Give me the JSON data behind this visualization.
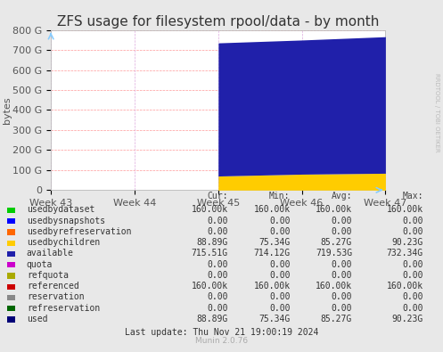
{
  "title": "ZFS usage for filesystem rpool/data - by month",
  "ylabel": "bytes",
  "background_color": "#e8e8e8",
  "plot_bg_color": "#ffffff",
  "grid_color_h": "#ff9999",
  "grid_color_v": "#ddaadd",
  "x_labels": [
    "Week 43",
    "Week 44",
    "Week 45",
    "Week 46",
    "Week 47"
  ],
  "x_positions": [
    0,
    1,
    2,
    3,
    4
  ],
  "xlim": [
    0,
    4
  ],
  "ylim": [
    0,
    858993459200
  ],
  "yticks": [
    0,
    107374182400,
    214748364800,
    322122547200,
    429496729600,
    536870912000,
    644245094400,
    751619276800,
    858993459200
  ],
  "ytick_labels": [
    "0",
    "100 G",
    "200 G",
    "300 G",
    "400 G",
    "500 G",
    "600 G",
    "700 G",
    "800 G"
  ],
  "colors": {
    "usedbydataset": "#00cc00",
    "usedbysnapshots": "#0000ff",
    "usedbyrefreservation": "#ff6600",
    "usedbychildren": "#ffcc00",
    "available": "#2020aa",
    "quota": "#cc00cc",
    "refquota": "#aaaa00",
    "referenced": "#cc0000",
    "reservation": "#888888",
    "refreservation": "#006600",
    "used": "#000077"
  },
  "x_data": [
    2,
    3,
    4
  ],
  "usedbychildren_values": [
    75340000000,
    85270000000,
    90230000000
  ],
  "available_values": [
    714120000000,
    719530000000,
    732340000000
  ],
  "usedbydataset_values": [
    160000,
    160000,
    160000
  ],
  "legend_entries": [
    {
      "label": "usedbydataset",
      "color": "#00cc00"
    },
    {
      "label": "usedbysnapshots",
      "color": "#0000ff"
    },
    {
      "label": "usedbyrefreservation",
      "color": "#ff6600"
    },
    {
      "label": "usedbychildren",
      "color": "#ffcc00"
    },
    {
      "label": "available",
      "color": "#2020aa"
    },
    {
      "label": "quota",
      "color": "#cc00cc"
    },
    {
      "label": "refquota",
      "color": "#aaaa00"
    },
    {
      "label": "referenced",
      "color": "#cc0000"
    },
    {
      "label": "reservation",
      "color": "#888888"
    },
    {
      "label": "refreservation",
      "color": "#006600"
    },
    {
      "label": "used",
      "color": "#000077"
    }
  ],
  "stats_header": [
    "Cur:",
    "Min:",
    "Avg:",
    "Max:"
  ],
  "stats": [
    [
      "usedbydataset",
      "160.00k",
      "160.00k",
      "160.00k",
      "160.00k"
    ],
    [
      "usedbysnapshots",
      "0.00",
      "0.00",
      "0.00",
      "0.00"
    ],
    [
      "usedbyrefreservation",
      "0.00",
      "0.00",
      "0.00",
      "0.00"
    ],
    [
      "usedbychildren",
      "88.89G",
      "75.34G",
      "85.27G",
      "90.23G"
    ],
    [
      "available",
      "715.51G",
      "714.12G",
      "719.53G",
      "732.34G"
    ],
    [
      "quota",
      "0.00",
      "0.00",
      "0.00",
      "0.00"
    ],
    [
      "refquota",
      "0.00",
      "0.00",
      "0.00",
      "0.00"
    ],
    [
      "referenced",
      "160.00k",
      "160.00k",
      "160.00k",
      "160.00k"
    ],
    [
      "reservation",
      "0.00",
      "0.00",
      "0.00",
      "0.00"
    ],
    [
      "refreservation",
      "0.00",
      "0.00",
      "0.00",
      "0.00"
    ],
    [
      "used",
      "88.89G",
      "75.34G",
      "85.27G",
      "90.23G"
    ]
  ],
  "last_update": "Last update: Thu Nov 21 19:00:19 2024",
  "munin_version": "Munin 2.0.76",
  "rrdtool_label": "RRDTOOL / TOBI OETIKER",
  "title_fontsize": 11,
  "axis_fontsize": 8,
  "stats_fontsize": 7
}
